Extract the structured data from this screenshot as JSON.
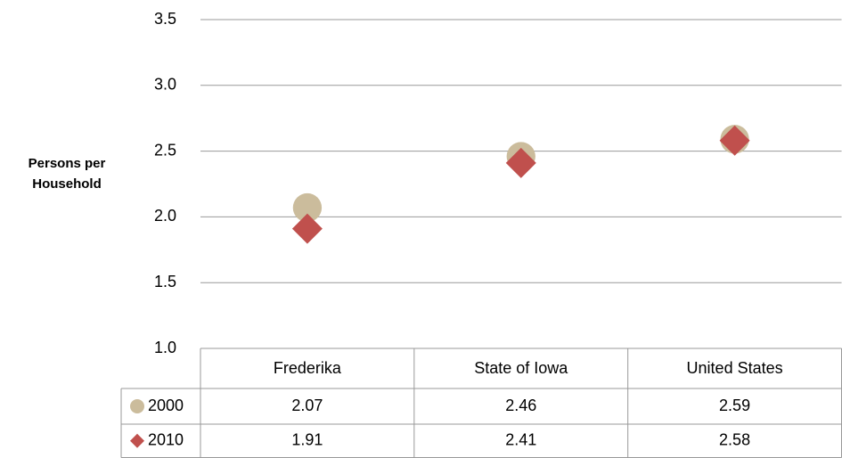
{
  "chart_data": {
    "type": "scatter",
    "y_label": "Persons per Household",
    "categories": [
      "Frederika",
      "State of Iowa",
      "United States"
    ],
    "series": [
      {
        "name": "2000",
        "color": "#cbbc9c",
        "marker": "circle",
        "values": [
          2.07,
          2.46,
          2.59
        ]
      },
      {
        "name": "2010",
        "color": "#c0504d",
        "marker": "diamond",
        "values": [
          1.91,
          2.41,
          2.58
        ]
      }
    ],
    "ylim": [
      1.0,
      3.5
    ],
    "yticks": [
      {
        "value": 1,
        "label": "1.0"
      },
      1.5,
      {
        "value": 2,
        "label": "2.0"
      },
      2.5,
      {
        "value": 3,
        "label": "3.0"
      },
      3.5
    ],
    "grid": true
  }
}
